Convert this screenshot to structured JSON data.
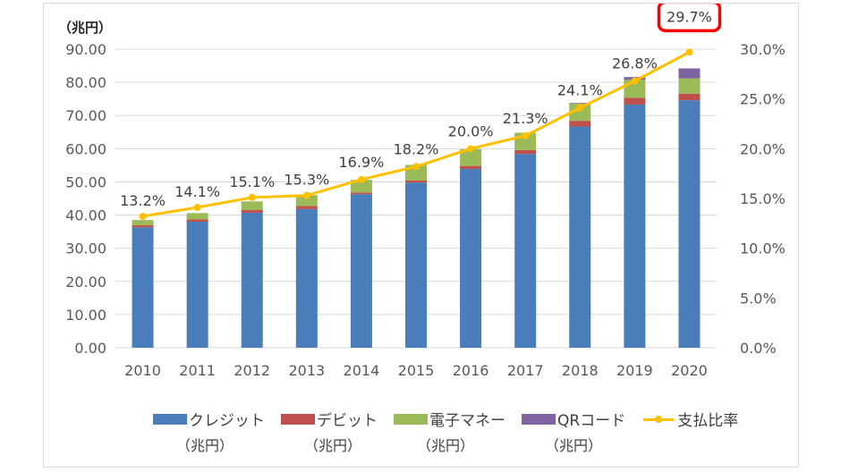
{
  "chart_data": {
    "type": "bar",
    "subtype": "stacked-bar-with-line",
    "title": "",
    "y_unit_label": "（兆円）",
    "categories": [
      "2010",
      "2011",
      "2012",
      "2013",
      "2014",
      "2015",
      "2016",
      "2017",
      "2018",
      "2019",
      "2020"
    ],
    "series": [
      {
        "name": "クレジット",
        "name_sub": "（兆円）",
        "color": "#4a7ebb",
        "axis": "left",
        "values": [
          36.3,
          38.0,
          40.7,
          41.8,
          46.3,
          49.8,
          53.9,
          58.4,
          66.7,
          73.3,
          74.6
        ]
      },
      {
        "name": "デビット",
        "name_sub": "（兆円）",
        "color": "#c0504d",
        "axis": "left",
        "values": [
          0.6,
          0.7,
          0.8,
          0.9,
          0.5,
          0.6,
          0.9,
          1.2,
          1.7,
          2.0,
          2.0
        ]
      },
      {
        "name": "電子マネー",
        "name_sub": "（兆円）",
        "color": "#9bbb59",
        "axis": "left",
        "values": [
          1.6,
          1.9,
          2.6,
          3.3,
          3.8,
          4.7,
          5.1,
          5.2,
          5.2,
          5.5,
          4.6
        ]
      },
      {
        "name": "QRコード",
        "name_sub": "（兆円）",
        "color": "#8064a2",
        "axis": "left",
        "values": [
          0,
          0,
          0,
          0,
          0,
          0,
          0,
          0,
          0.2,
          0.8,
          3.0
        ]
      },
      {
        "name": "支払比率",
        "name_sub": "",
        "color": "#ffc000",
        "axis": "right",
        "type": "line",
        "values": [
          13.2,
          14.1,
          15.1,
          15.3,
          16.9,
          18.2,
          20.0,
          21.3,
          24.1,
          26.8,
          29.7
        ],
        "labels": [
          "13.2%",
          "14.1%",
          "15.1%",
          "15.3%",
          "16.9%",
          "18.2%",
          "20.0%",
          "21.3%",
          "24.1%",
          "26.8%",
          "29.7%"
        ]
      }
    ],
    "ylim": [
      0,
      90
    ],
    "yticks": [
      "0.00",
      "10.00",
      "20.00",
      "30.00",
      "40.00",
      "50.00",
      "60.00",
      "70.00",
      "80.00",
      "90.00"
    ],
    "y2lim": [
      0,
      30
    ],
    "y2ticks": [
      "0.0%",
      "5.0%",
      "10.0%",
      "15.0%",
      "20.0%",
      "25.0%",
      "30.0%"
    ],
    "grid": true,
    "legend": "bottom",
    "highlight": {
      "label": "29.7%",
      "color": "#ff0000",
      "category": "2020"
    }
  }
}
